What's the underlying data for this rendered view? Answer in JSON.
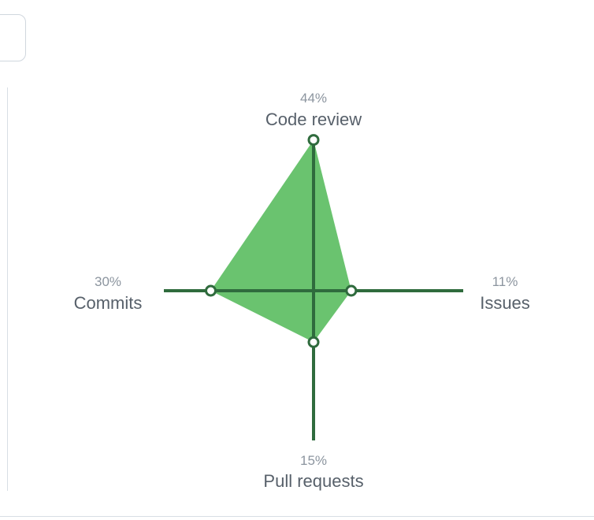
{
  "chart_data": {
    "type": "radar",
    "axes": [
      {
        "label": "Code review",
        "value": "44%"
      },
      {
        "label": "Issues",
        "value": "11%"
      },
      {
        "label": "Pull requests",
        "value": "15%"
      },
      {
        "label": "Commits",
        "value": "30%"
      }
    ],
    "values": [
      44,
      11,
      15,
      30
    ],
    "unit": "%",
    "colors": {
      "area": "#6ac36f",
      "axis": "#2f6b3d",
      "point_fill": "#ffffff",
      "label": "#57606a",
      "percent": "#8c959f"
    }
  }
}
